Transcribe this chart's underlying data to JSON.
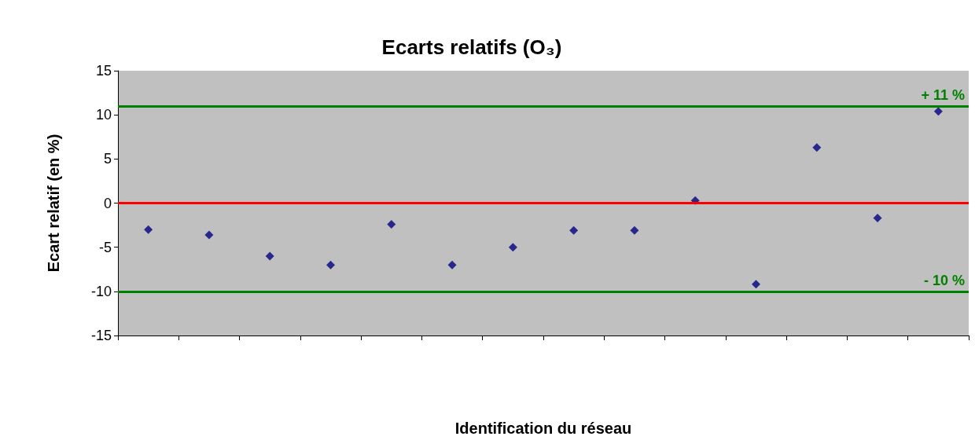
{
  "chart_data": {
    "type": "scatter",
    "title": "Ecarts relatifs (O₃)",
    "xlabel": "Identification du réseau",
    "ylabel": "Ecart relatif (en %)",
    "categories": [
      null,
      null,
      null,
      null,
      null,
      null,
      null,
      null,
      null,
      null,
      null,
      null,
      null,
      null
    ],
    "series": [
      {
        "color": "#000080",
        "values": [
          -3,
          -3.6,
          -6,
          -7,
          -2.4,
          -7,
          -5,
          -3.1,
          -3.1,
          0.3,
          -9.2,
          6.3,
          -1.7,
          10.4
        ]
      }
    ],
    "ylim": [
      -15,
      15
    ],
    "yticks": [
      -15,
      -10,
      -5,
      0,
      5,
      10,
      15
    ],
    "ref_lines": [
      {
        "axis": "y",
        "value": 11,
        "label": "+ 11 %",
        "color": "#008000",
        "line_style": "solid"
      },
      {
        "axis": "y",
        "value": -10,
        "label": "- 10 %",
        "color": "#008000",
        "line_style": "solid"
      },
      {
        "axis": "y",
        "value": 0,
        "label": null,
        "color": "#ff0000",
        "line_style": "solid"
      }
    ],
    "marker": "diamond",
    "grid": false
  }
}
